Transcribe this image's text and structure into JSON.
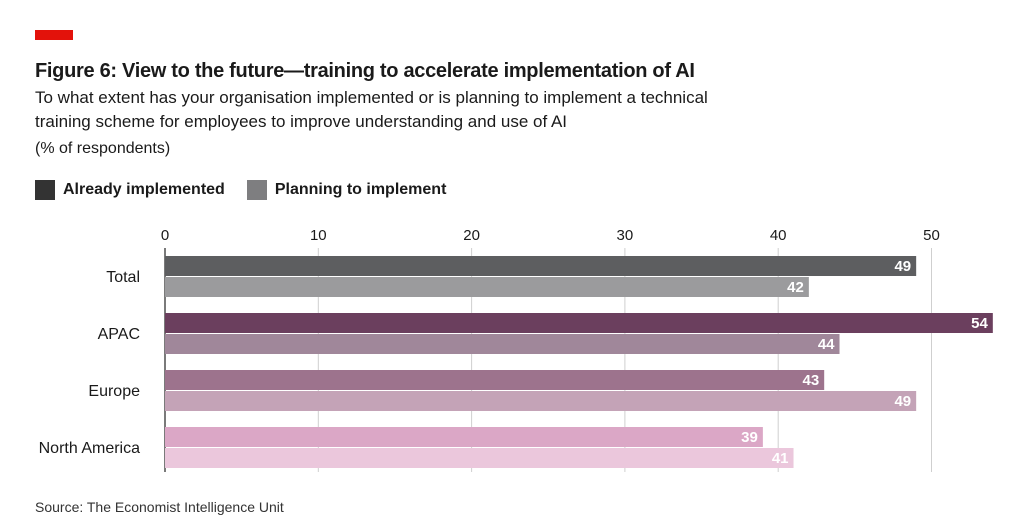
{
  "header": {
    "title": "Figure 6: View to the future—training to accelerate implementation of AI",
    "subtitle": "To what extent has your organisation implemented or is planning to implement a technical training scheme for employees to improve understanding and use of AI",
    "unit": "(% of respondents)"
  },
  "legend": [
    {
      "label": "Already implemented",
      "color": "#333333"
    },
    {
      "label": "Planning to implement",
      "color": "#7e7e80"
    }
  ],
  "source": "Source: The Economist Intelligence Unit",
  "chart_data": {
    "type": "bar",
    "orientation": "horizontal",
    "categories": [
      "Total",
      "APAC",
      "Europe",
      "North America"
    ],
    "series": [
      {
        "name": "Already implemented",
        "values": [
          49,
          54,
          43,
          39
        ]
      },
      {
        "name": "Planning to implement",
        "values": [
          42,
          44,
          49,
          41
        ]
      }
    ],
    "bar_colors": [
      [
        "#5d5e60",
        "#9b9b9d"
      ],
      [
        "#6b3f5e",
        "#a0879a"
      ],
      [
        "#9d738d",
        "#c4a3b7"
      ],
      [
        "#dba7c6",
        "#ebc7dc"
      ]
    ],
    "xaxis_ticks": [
      0,
      10,
      20,
      30,
      40,
      50
    ],
    "xlim": [
      0,
      54
    ],
    "xaxis_position": "top",
    "grid": true,
    "legend_position": "top-left",
    "data_labels": true
  }
}
